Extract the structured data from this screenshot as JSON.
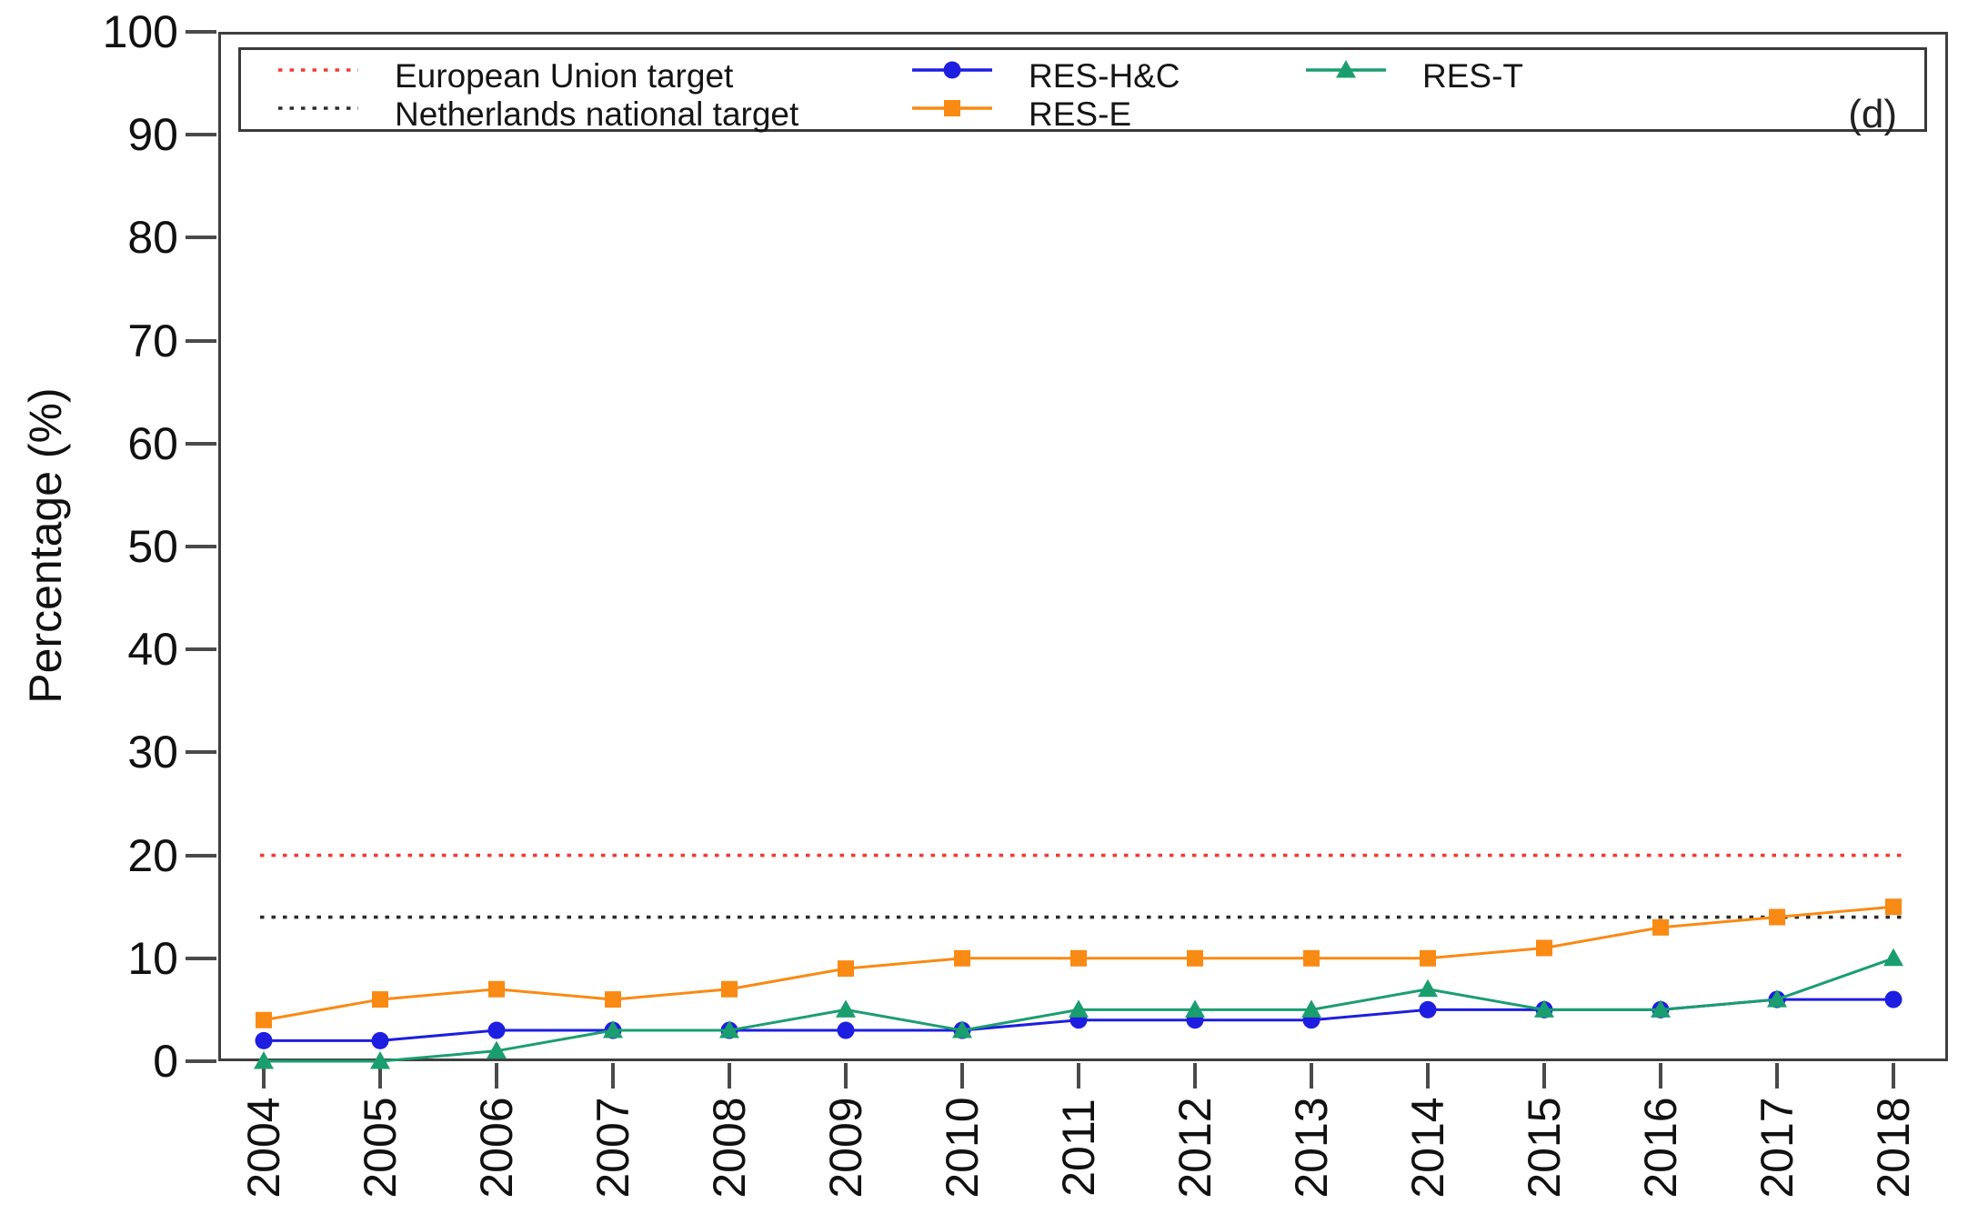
{
  "chart_data": {
    "type": "line",
    "title": "",
    "xlabel": "",
    "ylabel": "Percentage (%)",
    "ylim": [
      0,
      100
    ],
    "y_ticks": [
      0,
      10,
      20,
      30,
      40,
      50,
      60,
      70,
      80,
      90,
      100
    ],
    "grid": false,
    "legend_position": "top-inside-boxed",
    "panel_label": "(d)",
    "categories": [
      "2004",
      "2005",
      "2006",
      "2007",
      "2008",
      "2009",
      "2010",
      "2011",
      "2012",
      "2013",
      "2014",
      "2015",
      "2016",
      "2017",
      "2018"
    ],
    "targets": [
      {
        "label": "European Union target",
        "value": 20,
        "color": "#f23a30",
        "style": "dotted"
      },
      {
        "label": "Netherlands national target",
        "value": 14,
        "color": "#2b2b2b",
        "style": "dotted"
      }
    ],
    "series": [
      {
        "name": "RES-H&C",
        "marker": "circle",
        "color": "#1e1ee0",
        "values": [
          2,
          2,
          3,
          3,
          3,
          3,
          3,
          4,
          4,
          4,
          5,
          5,
          5,
          6,
          6
        ]
      },
      {
        "name": "RES-E",
        "marker": "square",
        "color": "#f98a14",
        "values": [
          4,
          6,
          7,
          6,
          7,
          9,
          10,
          10,
          10,
          10,
          10,
          11,
          13,
          14,
          15
        ]
      },
      {
        "name": "RES-T",
        "marker": "triangle",
        "color": "#1b9e6f",
        "values": [
          0,
          0,
          1,
          3,
          3,
          5,
          3,
          5,
          5,
          5,
          7,
          5,
          5,
          6,
          10
        ]
      }
    ],
    "axis_color": "#3f3f3f"
  }
}
